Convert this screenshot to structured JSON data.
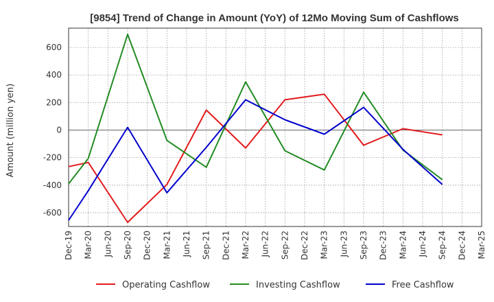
{
  "chart_data": {
    "type": "line",
    "title": "[9854]  Trend of Change in Amount (YoY) of 12Mo Moving Sum of Cashflows",
    "xlabel": "",
    "ylabel": "Amount (million yen)",
    "ylim": [
      -700,
      740
    ],
    "yticks": [
      -600,
      -400,
      -200,
      0,
      200,
      400,
      600
    ],
    "ytick_labels": [
      "-600",
      "-400",
      "-200",
      "0",
      "200",
      "400",
      "600"
    ],
    "categories": [
      "Dec-19",
      "Mar-20",
      "Jun-20",
      "Sep-20",
      "Dec-20",
      "Mar-21",
      "Jun-21",
      "Sep-21",
      "Dec-21",
      "Mar-22",
      "Jun-22",
      "Sep-22",
      "Dec-22",
      "Mar-23",
      "Jun-23",
      "Sep-23",
      "Dec-23",
      "Mar-24",
      "Jun-24",
      "Sep-24",
      "Dec-24",
      "Mar-25"
    ],
    "grid": true,
    "legend_position": "bottom",
    "series": [
      {
        "name": "Operating Cashflow",
        "color": "#e31a1c",
        "values": [
          -265,
          -235,
          null,
          -670,
          null,
          -395,
          null,
          145,
          null,
          -130,
          null,
          220,
          null,
          260,
          null,
          -110,
          null,
          10,
          null,
          -35,
          null,
          null
        ]
      },
      {
        "name": "Investing Cashflow",
        "color": "#228b22",
        "values": [
          -390,
          -205,
          null,
          695,
          null,
          -75,
          null,
          -270,
          null,
          350,
          null,
          -150,
          null,
          -290,
          null,
          275,
          null,
          -145,
          null,
          -360,
          null,
          null
        ]
      },
      {
        "name": "Free Cashflow",
        "color": "#0000cd",
        "values": [
          -655,
          -440,
          null,
          20,
          null,
          -455,
          null,
          -125,
          null,
          220,
          null,
          75,
          null,
          -30,
          null,
          165,
          null,
          -140,
          null,
          -395,
          null,
          null
        ]
      }
    ]
  }
}
